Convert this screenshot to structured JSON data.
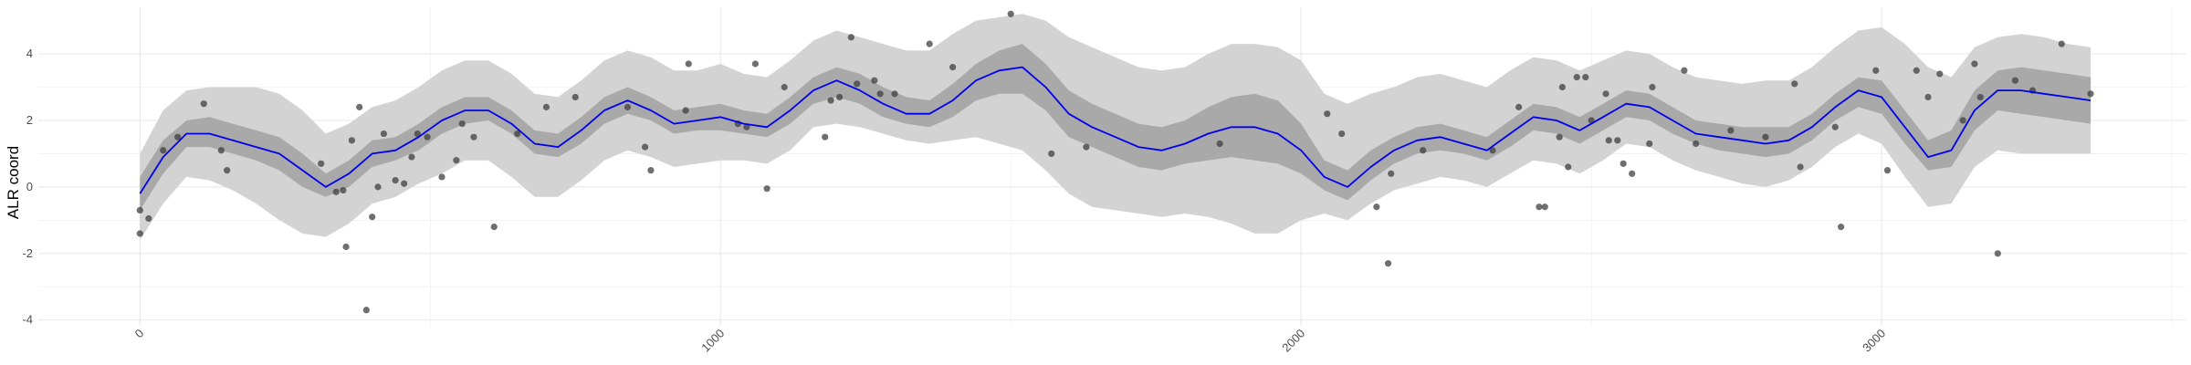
{
  "chart_data": {
    "type": "scatter",
    "title": "",
    "xlabel": "",
    "ylabel": "ALR coord",
    "xlim": [
      -175,
      3525
    ],
    "ylim": [
      -4.2,
      5.4
    ],
    "xticks": [
      0,
      1000,
      2000,
      3000
    ],
    "xtick_labels": [
      "0",
      "1000",
      "2000",
      "3000"
    ],
    "yticks": [
      -4,
      -2,
      0,
      2,
      4
    ],
    "ytick_labels": [
      "-4",
      "-2",
      "0",
      "2",
      "4"
    ],
    "x_tick_label_rotation_deg": 45,
    "grid": true,
    "legend": "none",
    "colors": {
      "points": "#3f3f3f",
      "mean_line": "#0000ee",
      "inner_band": "#a9a9a9",
      "outer_band": "#d3d3d3",
      "grid": "#ebebeb"
    },
    "mean_line": {
      "x": [
        0,
        40,
        80,
        120,
        160,
        200,
        240,
        280,
        320,
        360,
        400,
        440,
        480,
        520,
        560,
        600,
        640,
        680,
        720,
        760,
        800,
        840,
        880,
        920,
        960,
        1000,
        1040,
        1080,
        1120,
        1160,
        1200,
        1240,
        1280,
        1320,
        1360,
        1400,
        1440,
        1480,
        1520,
        1560,
        1600,
        1640,
        1680,
        1720,
        1760,
        1800,
        1840,
        1880,
        1920,
        1960,
        2000,
        2040,
        2080,
        2120,
        2160,
        2200,
        2240,
        2280,
        2320,
        2360,
        2400,
        2440,
        2480,
        2520,
        2560,
        2600,
        2640,
        2680,
        2720,
        2760,
        2800,
        2840,
        2880,
        2920,
        2960,
        3000,
        3040,
        3080,
        3120,
        3160,
        3200,
        3240,
        3280,
        3320,
        3360
      ],
      "y": [
        -0.2,
        0.9,
        1.6,
        1.6,
        1.4,
        1.2,
        1.0,
        0.5,
        0.0,
        0.4,
        1.0,
        1.1,
        1.5,
        2.0,
        2.3,
        2.3,
        1.9,
        1.3,
        1.2,
        1.7,
        2.3,
        2.6,
        2.3,
        1.9,
        2.0,
        2.1,
        1.9,
        1.8,
        2.3,
        2.9,
        3.2,
        2.9,
        2.5,
        2.2,
        2.2,
        2.6,
        3.2,
        3.5,
        3.6,
        3.0,
        2.2,
        1.8,
        1.5,
        1.2,
        1.1,
        1.3,
        1.6,
        1.8,
        1.8,
        1.6,
        1.1,
        0.3,
        0.0,
        0.6,
        1.1,
        1.4,
        1.5,
        1.3,
        1.1,
        1.6,
        2.1,
        2.0,
        1.7,
        2.1,
        2.5,
        2.4,
        2.0,
        1.6,
        1.5,
        1.4,
        1.3,
        1.4,
        1.8,
        2.4,
        2.9,
        2.7,
        1.8,
        0.9,
        1.1,
        2.3,
        2.9,
        2.9,
        2.8,
        2.7,
        2.6
      ]
    },
    "inner_band": {
      "lower": [
        -0.7,
        0.4,
        1.2,
        1.2,
        1.0,
        0.8,
        0.5,
        0.0,
        -0.3,
        0.0,
        0.6,
        0.8,
        1.1,
        1.6,
        1.9,
        2.0,
        1.6,
        1.0,
        0.9,
        1.3,
        1.9,
        2.2,
        2.0,
        1.6,
        1.7,
        1.7,
        1.6,
        1.5,
        1.9,
        2.5,
        2.7,
        2.5,
        2.1,
        1.9,
        1.8,
        2.1,
        2.6,
        2.8,
        2.8,
        2.3,
        1.5,
        1.2,
        0.9,
        0.6,
        0.5,
        0.7,
        0.8,
        0.9,
        0.8,
        0.7,
        0.4,
        -0.1,
        -0.4,
        0.2,
        0.7,
        1.0,
        1.1,
        1.0,
        0.8,
        1.2,
        1.7,
        1.6,
        1.3,
        1.7,
        2.1,
        2.0,
        1.6,
        1.3,
        1.1,
        1.0,
        0.9,
        1.0,
        1.4,
        2.0,
        2.4,
        2.2,
        1.3,
        0.5,
        0.6,
        1.7,
        2.3,
        2.2,
        2.1,
        2.0,
        1.9
      ],
      "upper": [
        0.3,
        1.4,
        2.0,
        2.1,
        1.9,
        1.7,
        1.5,
        1.0,
        0.4,
        0.8,
        1.4,
        1.5,
        1.9,
        2.4,
        2.7,
        2.7,
        2.3,
        1.7,
        1.6,
        2.1,
        2.7,
        3.0,
        2.7,
        2.3,
        2.4,
        2.5,
        2.3,
        2.2,
        2.7,
        3.3,
        3.6,
        3.4,
        3.0,
        2.7,
        2.6,
        3.1,
        3.7,
        4.1,
        4.3,
        3.7,
        2.9,
        2.5,
        2.2,
        1.9,
        1.8,
        2.0,
        2.4,
        2.7,
        2.8,
        2.6,
        1.9,
        0.8,
        0.5,
        1.1,
        1.5,
        1.8,
        1.9,
        1.7,
        1.5,
        2.0,
        2.5,
        2.4,
        2.1,
        2.5,
        2.9,
        2.8,
        2.4,
        2.0,
        1.9,
        1.8,
        1.8,
        1.8,
        2.2,
        2.8,
        3.3,
        3.2,
        2.3,
        1.4,
        1.7,
        2.9,
        3.5,
        3.6,
        3.5,
        3.4,
        3.3
      ]
    },
    "outer_band": {
      "lower": [
        -1.6,
        -0.5,
        0.3,
        0.2,
        -0.1,
        -0.5,
        -1.0,
        -1.4,
        -1.5,
        -1.1,
        -0.5,
        -0.3,
        0.1,
        0.4,
        0.8,
        0.8,
        0.3,
        -0.3,
        -0.3,
        0.2,
        0.8,
        1.1,
        0.9,
        0.6,
        0.7,
        0.8,
        0.8,
        0.7,
        1.1,
        1.8,
        1.9,
        1.8,
        1.6,
        1.4,
        1.3,
        1.4,
        1.5,
        1.3,
        1.1,
        0.5,
        -0.2,
        -0.6,
        -0.7,
        -0.8,
        -0.9,
        -0.8,
        -0.9,
        -1.1,
        -1.4,
        -1.4,
        -1.0,
        -0.8,
        -1.0,
        -0.5,
        -0.1,
        0.1,
        0.3,
        0.2,
        0.0,
        0.4,
        0.8,
        0.7,
        0.4,
        0.8,
        1.3,
        1.2,
        0.8,
        0.5,
        0.3,
        0.1,
        0.0,
        0.2,
        0.6,
        1.2,
        1.6,
        1.3,
        0.3,
        -0.6,
        -0.5,
        0.6,
        1.1,
        1.0,
        1.0,
        1.0,
        1.0
      ],
      "upper": [
        1.0,
        2.3,
        2.9,
        3.0,
        3.0,
        3.0,
        2.8,
        2.3,
        1.6,
        1.9,
        2.4,
        2.6,
        3.0,
        3.5,
        3.8,
        3.8,
        3.4,
        2.8,
        2.7,
        3.2,
        3.8,
        4.1,
        3.9,
        3.5,
        3.5,
        3.7,
        3.4,
        3.3,
        3.8,
        4.4,
        4.7,
        4.5,
        4.3,
        4.1,
        4.1,
        4.6,
        5.0,
        5.1,
        5.2,
        5.0,
        4.5,
        4.2,
        3.9,
        3.6,
        3.5,
        3.6,
        4.0,
        4.3,
        4.3,
        4.2,
        3.8,
        2.8,
        2.5,
        2.8,
        3.0,
        3.3,
        3.4,
        3.2,
        3.0,
        3.5,
        3.9,
        3.8,
        3.5,
        3.8,
        4.1,
        4.0,
        3.6,
        3.3,
        3.2,
        3.1,
        3.2,
        3.2,
        3.6,
        4.2,
        4.7,
        4.8,
        4.3,
        3.6,
        3.3,
        4.2,
        4.5,
        4.6,
        4.5,
        4.3,
        4.2
      ]
    },
    "points": {
      "x": [
        0,
        0,
        15,
        40,
        65,
        110,
        140,
        150,
        312,
        338,
        350,
        355,
        365,
        378,
        390,
        400,
        410,
        420,
        440,
        455,
        468,
        478,
        495,
        520,
        545,
        555,
        575,
        610,
        650,
        700,
        750,
        840,
        870,
        880,
        940,
        945,
        1030,
        1045,
        1060,
        1080,
        1110,
        1180,
        1190,
        1205,
        1225,
        1235,
        1265,
        1275,
        1300,
        1360,
        1400,
        1500,
        1570,
        1630,
        1860,
        2045,
        2070,
        2130,
        2150,
        2155,
        2210,
        2330,
        2375,
        2410,
        2420,
        2445,
        2450,
        2460,
        2475,
        2490,
        2500,
        2525,
        2530,
        2545,
        2555,
        2570,
        2600,
        2605,
        2660,
        2680,
        2740,
        2800,
        2850,
        2860,
        2920,
        2930,
        2990,
        3010,
        3060,
        3080,
        3100,
        3140,
        3160,
        3170,
        3200,
        3230,
        3260,
        3310,
        3360
      ],
      "y": [
        -0.7,
        -1.4,
        -0.95,
        1.1,
        1.5,
        2.5,
        1.1,
        0.5,
        0.7,
        -0.15,
        -0.1,
        -1.8,
        1.4,
        2.4,
        -3.7,
        -0.9,
        0.0,
        1.6,
        0.2,
        0.1,
        0.9,
        1.6,
        1.5,
        0.3,
        0.8,
        1.9,
        1.5,
        -1.2,
        1.6,
        2.4,
        2.7,
        2.4,
        1.2,
        0.5,
        2.3,
        3.7,
        1.9,
        1.8,
        3.7,
        -0.05,
        3.0,
        1.5,
        2.6,
        2.7,
        4.5,
        3.1,
        3.2,
        2.8,
        2.8,
        4.3,
        3.6,
        5.2,
        1.0,
        1.2,
        1.3,
        2.2,
        1.6,
        -0.6,
        -2.3,
        0.4,
        1.1,
        1.1,
        2.4,
        -0.6,
        -0.6,
        1.5,
        3.0,
        0.6,
        3.3,
        3.3,
        2.0,
        2.8,
        1.4,
        1.4,
        0.7,
        0.4,
        1.3,
        3.0,
        3.5,
        1.3,
        1.7,
        1.5,
        3.1,
        0.6,
        1.8,
        -1.2,
        3.5,
        0.5,
        3.5,
        2.7,
        3.4,
        2.0,
        3.7,
        2.7,
        -2.0,
        3.2,
        2.9,
        4.3,
        2.8
      ]
    }
  }
}
